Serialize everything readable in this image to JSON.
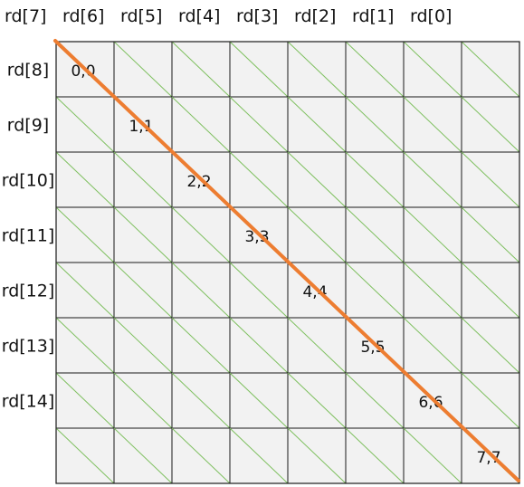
{
  "column_labels": [
    "rd[7]",
    "rd[6]",
    "rd[5]",
    "rd[4]",
    "rd[3]",
    "rd[2]",
    "rd[1]",
    "rd[0]"
  ],
  "row_labels": [
    "rd[8]",
    "rd[9]",
    "rd[10]",
    "rd[11]",
    "rd[12]",
    "rd[13]",
    "rd[14]",
    ""
  ],
  "diagonal_labels": [
    "0,0",
    "1,1",
    "2,2",
    "3,3",
    "4,4",
    "5,5",
    "6,6",
    "7,7"
  ],
  "grid": {
    "rows": 8,
    "cols": 8
  },
  "colors": {
    "cell_fill": "#f2f2f2",
    "grid_line": "#1a1a1a",
    "cell_diagonal": "#7fc060",
    "main_diagonal": "#ed7d31"
  }
}
